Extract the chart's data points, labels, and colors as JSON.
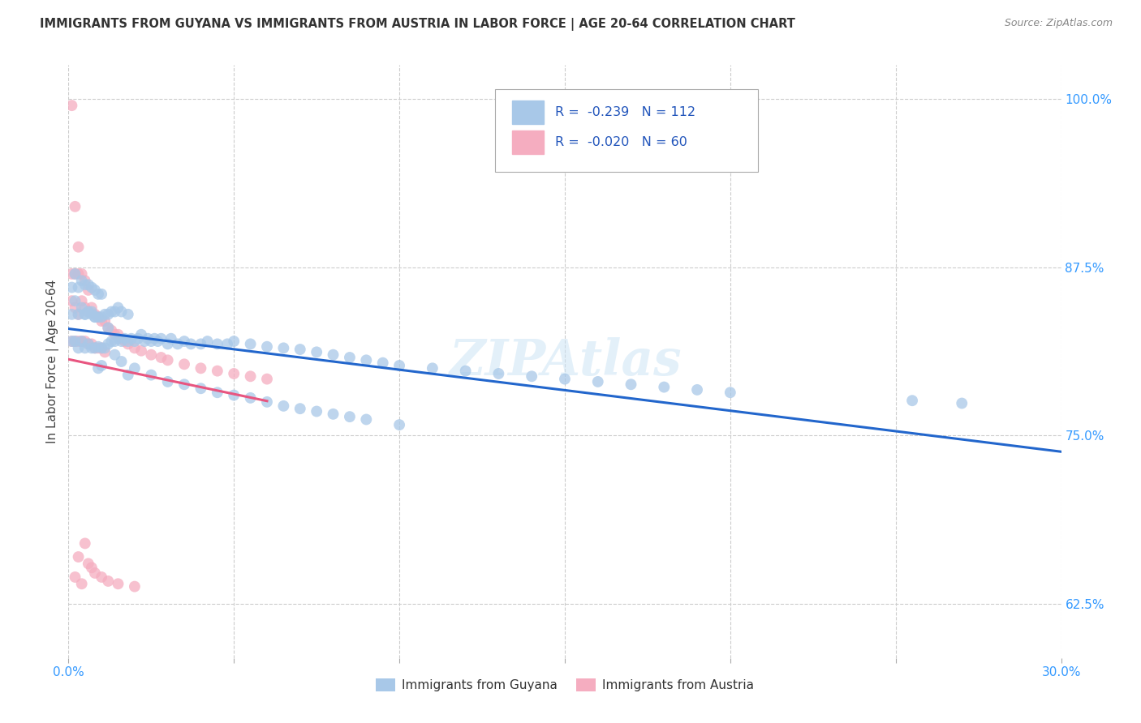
{
  "title": "IMMIGRANTS FROM GUYANA VS IMMIGRANTS FROM AUSTRIA IN LABOR FORCE | AGE 20-64 CORRELATION CHART",
  "source": "Source: ZipAtlas.com",
  "ylabel": "In Labor Force | Age 20-64",
  "xlim": [
    0.0,
    0.3
  ],
  "ylim": [
    0.585,
    1.025
  ],
  "xtick_positions": [
    0.0,
    0.05,
    0.1,
    0.15,
    0.2,
    0.25,
    0.3
  ],
  "xtick_labels": [
    "0.0%",
    "",
    "",
    "",
    "",
    "",
    "30.0%"
  ],
  "ytick_positions": [
    1.0,
    0.875,
    0.75,
    0.625
  ],
  "ytick_labels": [
    "100.0%",
    "87.5%",
    "75.0%",
    "62.5%"
  ],
  "legend_r1": "-0.239",
  "legend_n1": "112",
  "legend_r2": "-0.020",
  "legend_n2": "60",
  "color_guyana": "#a8c8e8",
  "color_austria": "#f5adc0",
  "line_color_guyana": "#2266cc",
  "line_color_austria": "#e85580",
  "watermark": "ZIPAtlas",
  "guyana_x": [
    0.001,
    0.001,
    0.001,
    0.002,
    0.002,
    0.002,
    0.003,
    0.003,
    0.003,
    0.004,
    0.004,
    0.004,
    0.005,
    0.005,
    0.005,
    0.006,
    0.006,
    0.007,
    0.007,
    0.007,
    0.008,
    0.008,
    0.008,
    0.009,
    0.009,
    0.009,
    0.01,
    0.01,
    0.01,
    0.011,
    0.011,
    0.012,
    0.012,
    0.013,
    0.013,
    0.014,
    0.014,
    0.015,
    0.015,
    0.016,
    0.016,
    0.017,
    0.018,
    0.018,
    0.019,
    0.02,
    0.021,
    0.022,
    0.023,
    0.024,
    0.025,
    0.026,
    0.027,
    0.028,
    0.03,
    0.031,
    0.033,
    0.035,
    0.037,
    0.04,
    0.042,
    0.045,
    0.048,
    0.05,
    0.055,
    0.06,
    0.065,
    0.07,
    0.075,
    0.08,
    0.085,
    0.09,
    0.095,
    0.1,
    0.11,
    0.12,
    0.13,
    0.14,
    0.15,
    0.16,
    0.17,
    0.18,
    0.19,
    0.2,
    0.005,
    0.006,
    0.007,
    0.008,
    0.009,
    0.01,
    0.012,
    0.014,
    0.016,
    0.018,
    0.02,
    0.025,
    0.03,
    0.035,
    0.04,
    0.045,
    0.05,
    0.055,
    0.06,
    0.065,
    0.07,
    0.075,
    0.08,
    0.085,
    0.09,
    0.1,
    0.255,
    0.27
  ],
  "guyana_y": [
    0.82,
    0.84,
    0.86,
    0.82,
    0.85,
    0.87,
    0.815,
    0.84,
    0.86,
    0.82,
    0.845,
    0.865,
    0.815,
    0.84,
    0.862,
    0.818,
    0.842,
    0.815,
    0.84,
    0.86,
    0.815,
    0.838,
    0.858,
    0.816,
    0.838,
    0.855,
    0.815,
    0.838,
    0.855,
    0.815,
    0.84,
    0.818,
    0.84,
    0.82,
    0.842,
    0.82,
    0.842,
    0.822,
    0.845,
    0.82,
    0.842,
    0.822,
    0.82,
    0.84,
    0.822,
    0.82,
    0.822,
    0.825,
    0.82,
    0.822,
    0.82,
    0.822,
    0.82,
    0.822,
    0.818,
    0.822,
    0.818,
    0.82,
    0.818,
    0.818,
    0.82,
    0.818,
    0.818,
    0.82,
    0.818,
    0.816,
    0.815,
    0.814,
    0.812,
    0.81,
    0.808,
    0.806,
    0.804,
    0.802,
    0.8,
    0.798,
    0.796,
    0.794,
    0.792,
    0.79,
    0.788,
    0.786,
    0.784,
    0.782,
    0.84,
    0.862,
    0.842,
    0.838,
    0.8,
    0.802,
    0.83,
    0.81,
    0.805,
    0.795,
    0.8,
    0.795,
    0.79,
    0.788,
    0.785,
    0.782,
    0.78,
    0.778,
    0.775,
    0.772,
    0.77,
    0.768,
    0.766,
    0.764,
    0.762,
    0.758,
    0.776,
    0.774
  ],
  "austria_x": [
    0.001,
    0.001,
    0.001,
    0.001,
    0.002,
    0.002,
    0.002,
    0.002,
    0.003,
    0.003,
    0.003,
    0.003,
    0.004,
    0.004,
    0.004,
    0.005,
    0.005,
    0.005,
    0.006,
    0.006,
    0.006,
    0.007,
    0.007,
    0.008,
    0.008,
    0.009,
    0.009,
    0.01,
    0.01,
    0.011,
    0.011,
    0.012,
    0.013,
    0.014,
    0.015,
    0.016,
    0.017,
    0.018,
    0.02,
    0.022,
    0.025,
    0.028,
    0.03,
    0.035,
    0.04,
    0.045,
    0.05,
    0.055,
    0.06,
    0.002,
    0.003,
    0.004,
    0.005,
    0.006,
    0.007,
    0.008,
    0.01,
    0.012,
    0.015,
    0.02
  ],
  "austria_y": [
    0.995,
    0.87,
    0.85,
    0.82,
    0.92,
    0.87,
    0.845,
    0.82,
    0.89,
    0.87,
    0.84,
    0.82,
    0.87,
    0.85,
    0.82,
    0.865,
    0.845,
    0.82,
    0.858,
    0.842,
    0.818,
    0.845,
    0.818,
    0.84,
    0.815,
    0.838,
    0.815,
    0.835,
    0.815,
    0.835,
    0.812,
    0.83,
    0.828,
    0.825,
    0.825,
    0.822,
    0.82,
    0.818,
    0.815,
    0.813,
    0.81,
    0.808,
    0.806,
    0.803,
    0.8,
    0.798,
    0.796,
    0.794,
    0.792,
    0.645,
    0.66,
    0.64,
    0.67,
    0.655,
    0.652,
    0.648,
    0.645,
    0.642,
    0.64,
    0.638
  ]
}
